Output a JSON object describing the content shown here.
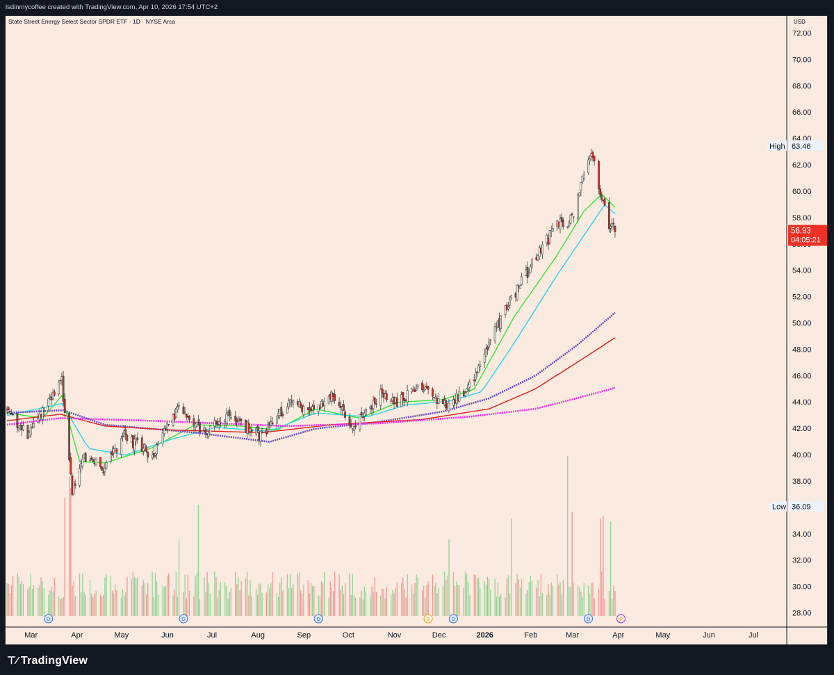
{
  "header": {
    "attribution": "lsdinmycoffee created with TradingView.com, Apr 10, 2026 17:54 UTC+2"
  },
  "chart": {
    "symbol_title": "State Street Energy Select Sector SPDR ETF · 1D · NYSE Arca",
    "currency": "USD"
  },
  "footer": {
    "brand": "TradingView"
  },
  "colors": {
    "background": "#faeadf",
    "up": "#22ab94",
    "down": "#e0332e",
    "ema_fast": "#31e831",
    "ema_slow": "#26d6e8",
    "ma_purple": "#6a4fc4",
    "ma_red": "#e31f1f",
    "ma_magenta": "#ee33ee",
    "last_price_bg": "#ef3125"
  },
  "chart_data": {
    "type": "candlestick",
    "y_axis": {
      "min": 27,
      "max": 73,
      "ticks": [
        "72.00",
        "70.00",
        "68.00",
        "66.00",
        "64.00",
        "62.00",
        "60.00",
        "58.00",
        "56.00",
        "54.00",
        "52.00",
        "50.00",
        "48.00",
        "46.00",
        "44.00",
        "42.00",
        "40.00",
        "38.00",
        "36.00",
        "34.00",
        "32.00",
        "30.00",
        "28.00"
      ]
    },
    "x_axis": {
      "labels": [
        "Mar",
        "Apr",
        "May",
        "Jun",
        "Jul",
        "Aug",
        "Sep",
        "Oct",
        "Nov",
        "Dec",
        "2026",
        "Feb",
        "Mar",
        "Apr",
        "May",
        "Jun",
        "Jul"
      ],
      "bold_label": "2026"
    },
    "price_labels": {
      "high_label": "High",
      "high_value": "63.46",
      "low_label": "Low",
      "low_value": "36.09",
      "last_value": "56.93",
      "countdown": "04:05:21"
    },
    "dividend_marker_letter": "D",
    "split_marker_letter": "S",
    "event_marker_glyph": "⚡",
    "anchors": [
      [
        "2025-02-24",
        43.4
      ],
      [
        "2025-03-10",
        41.6
      ],
      [
        "2025-03-24",
        43.9
      ],
      [
        "2025-04-02",
        45.6
      ],
      [
        "2025-04-09",
        37.2
      ],
      [
        "2025-04-16",
        39.8
      ],
      [
        "2025-04-30",
        39.0
      ],
      [
        "2025-05-14",
        41.4
      ],
      [
        "2025-06-02",
        40.0
      ],
      [
        "2025-06-20",
        43.6
      ],
      [
        "2025-07-07",
        41.8
      ],
      [
        "2025-07-24",
        42.9
      ],
      [
        "2025-08-14",
        41.5
      ],
      [
        "2025-09-02",
        43.8
      ],
      [
        "2025-09-20",
        43.6
      ],
      [
        "2025-10-01",
        44.6
      ],
      [
        "2025-10-16",
        42.1
      ],
      [
        "2025-11-03",
        44.6
      ],
      [
        "2025-11-14",
        44.1
      ],
      [
        "2025-12-01",
        45.1
      ],
      [
        "2025-12-18",
        43.7
      ],
      [
        "2026-01-02",
        45.2
      ],
      [
        "2026-01-16",
        48.9
      ],
      [
        "2026-02-02",
        52.4
      ],
      [
        "2026-02-16",
        55.0
      ],
      [
        "2026-03-02",
        57.5
      ],
      [
        "2026-03-12",
        57.8
      ],
      [
        "2026-03-20",
        61.2
      ],
      [
        "2026-03-25",
        63.0
      ],
      [
        "2026-03-31",
        60.0
      ],
      [
        "2026-04-06",
        57.6
      ],
      [
        "2026-04-10",
        56.93
      ]
    ],
    "moving_averages": [
      {
        "color_key": "ema_fast",
        "anchors": [
          [
            "2025-02-24",
            43.2
          ],
          [
            "2025-03-20",
            42.8
          ],
          [
            "2025-04-02",
            44.5
          ],
          [
            "2025-04-14",
            39.5
          ],
          [
            "2025-05-01",
            39.4
          ],
          [
            "2025-06-01",
            40.5
          ],
          [
            "2025-07-01",
            42.3
          ],
          [
            "2025-08-01",
            42.2
          ],
          [
            "2025-08-25",
            41.9
          ],
          [
            "2025-09-20",
            43.5
          ],
          [
            "2025-10-20",
            42.8
          ],
          [
            "2025-11-15",
            44.0
          ],
          [
            "2025-12-15",
            44.2
          ],
          [
            "2026-01-05",
            45.0
          ],
          [
            "2026-02-01",
            50.5
          ],
          [
            "2026-03-01",
            55.0
          ],
          [
            "2026-03-20",
            58.5
          ],
          [
            "2026-04-01",
            59.8
          ],
          [
            "2026-04-10",
            58.8
          ]
        ]
      },
      {
        "color_key": "ema_slow",
        "anchors": [
          [
            "2025-02-24",
            43.0
          ],
          [
            "2025-04-02",
            43.9
          ],
          [
            "2025-04-20",
            40.5
          ],
          [
            "2025-05-15",
            40.0
          ],
          [
            "2025-06-15",
            41.2
          ],
          [
            "2025-07-15",
            42.1
          ],
          [
            "2025-08-20",
            41.8
          ],
          [
            "2025-09-20",
            43.2
          ],
          [
            "2025-10-25",
            42.9
          ],
          [
            "2025-11-20",
            43.8
          ],
          [
            "2025-12-20",
            44.1
          ],
          [
            "2026-01-10",
            44.8
          ],
          [
            "2026-02-01",
            48.5
          ],
          [
            "2026-03-01",
            53.5
          ],
          [
            "2026-03-25",
            57.5
          ],
          [
            "2026-04-03",
            59.0
          ],
          [
            "2026-04-10",
            58.3
          ]
        ]
      },
      {
        "color_key": "ma_purple",
        "anchors": [
          [
            "2025-02-24",
            43.2
          ],
          [
            "2025-04-03",
            43.4
          ],
          [
            "2025-05-01",
            42.3
          ],
          [
            "2025-07-01",
            41.7
          ],
          [
            "2025-08-20",
            41.0
          ],
          [
            "2025-09-20",
            42.0
          ],
          [
            "2025-11-01",
            42.5
          ],
          [
            "2025-12-15",
            43.3
          ],
          [
            "2026-01-15",
            44.3
          ],
          [
            "2026-02-15",
            46.0
          ],
          [
            "2026-03-15",
            48.3
          ],
          [
            "2026-04-10",
            50.8
          ]
        ]
      },
      {
        "color_key": "ma_red",
        "anchors": [
          [
            "2025-02-24",
            42.6
          ],
          [
            "2025-04-01",
            43.1
          ],
          [
            "2025-05-01",
            42.2
          ],
          [
            "2025-06-15",
            41.9
          ],
          [
            "2025-08-15",
            41.7
          ],
          [
            "2025-10-01",
            42.3
          ],
          [
            "2025-12-01",
            42.7
          ],
          [
            "2026-01-15",
            43.5
          ],
          [
            "2026-02-15",
            45.0
          ],
          [
            "2026-03-15",
            47.0
          ],
          [
            "2026-04-10",
            48.9
          ]
        ]
      },
      {
        "color_key": "ma_magenta",
        "anchors": [
          [
            "2025-02-24",
            42.3
          ],
          [
            "2025-04-01",
            42.8
          ],
          [
            "2025-06-01",
            42.6
          ],
          [
            "2025-09-01",
            42.2
          ],
          [
            "2025-11-01",
            42.4
          ],
          [
            "2026-01-01",
            42.9
          ],
          [
            "2026-02-15",
            43.5
          ],
          [
            "2026-03-15",
            44.3
          ],
          [
            "2026-04-10",
            45.1
          ]
        ]
      }
    ],
    "volume_spikes": [
      [
        "2025-04-04",
        0.85
      ],
      [
        "2025-04-07",
        1.0
      ],
      [
        "2025-04-08",
        0.92
      ],
      [
        "2025-06-20",
        0.55
      ],
      [
        "2025-07-03",
        0.8
      ],
      [
        "2025-12-19",
        0.55
      ],
      [
        "2026-01-30",
        0.7
      ],
      [
        "2026-03-09",
        1.15
      ],
      [
        "2026-03-12",
        0.75
      ],
      [
        "2026-03-31",
        0.7
      ],
      [
        "2026-04-02",
        0.72
      ],
      [
        "2026-04-07",
        0.68
      ]
    ],
    "dividend_dates": [
      "2025-03-24",
      "2025-06-23",
      "2025-09-22",
      "2025-12-22",
      "2026-03-23"
    ],
    "split_date": "2025-12-05",
    "event_date": "2026-04-14"
  }
}
